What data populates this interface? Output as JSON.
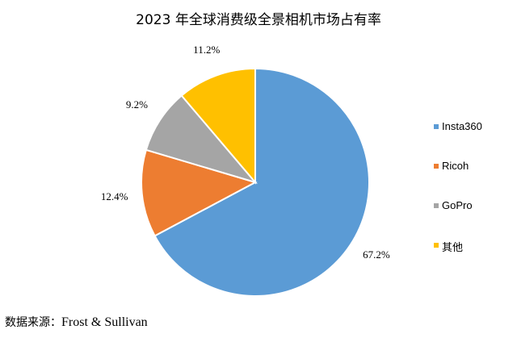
{
  "chart_data": {
    "type": "pie",
    "title": "2023 年全球消费级全景相机市场占有率",
    "categories": [
      "Insta360",
      "Ricoh",
      "GoPro",
      "其他"
    ],
    "values": [
      67.2,
      12.4,
      9.2,
      11.2
    ],
    "value_labels": [
      "67.2%",
      "12.4%",
      "9.2%",
      "11.2%"
    ],
    "colors": [
      "#5B9BD5",
      "#ED7D31",
      "#A5A5A5",
      "#FFC000"
    ],
    "start_angle_deg": 0,
    "direction": "clockwise",
    "legend_position": "right"
  },
  "source": {
    "label": "数据来源：",
    "text": "Frost & Sullivan"
  }
}
